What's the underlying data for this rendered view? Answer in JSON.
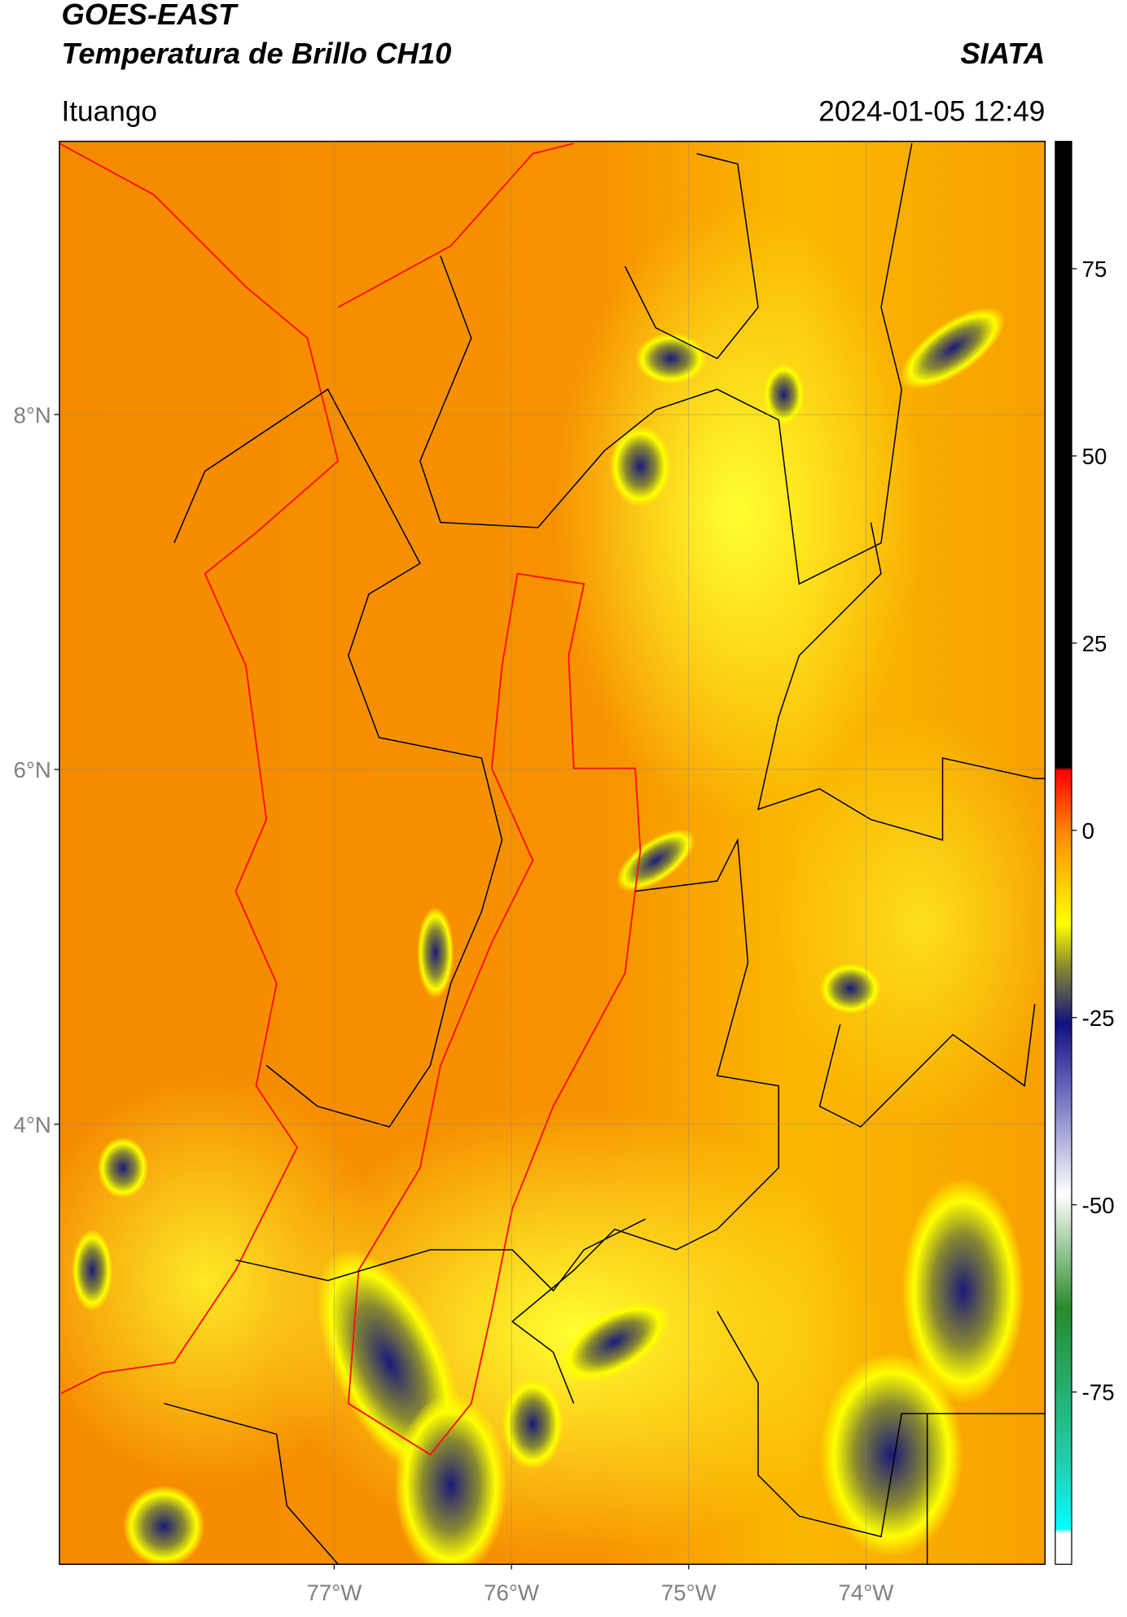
{
  "chart_data": {
    "type": "map",
    "title": "GOES-EAST",
    "subtitle": "Temperatura de Brillo CH10",
    "source": "SIATA",
    "location": "Ituango",
    "timestamp": "2024-01-05 12:49",
    "xlim": [
      -78.55,
      -72.99
    ],
    "ylim": [
      1.52,
      9.54
    ],
    "xticks": [
      {
        "value": -77,
        "label": "77°W"
      },
      {
        "value": -76,
        "label": "76°W"
      },
      {
        "value": -75,
        "label": "75°W"
      },
      {
        "value": -74,
        "label": "74°W"
      }
    ],
    "yticks": [
      {
        "value": 4,
        "label": "4°N"
      },
      {
        "value": 6,
        "label": "6°N"
      },
      {
        "value": 8,
        "label": "8°N"
      }
    ],
    "grid": true,
    "colorbar": {
      "lim": [
        -98,
        92
      ],
      "ticks": [
        -75,
        -50,
        -25,
        0,
        25,
        50,
        75
      ]
    }
  }
}
